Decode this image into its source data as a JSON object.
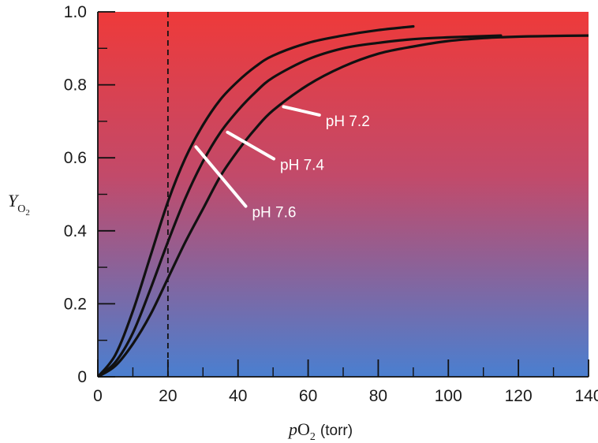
{
  "chart_data": {
    "type": "line",
    "xlabel_italic": "p",
    "xlabel_main": "O",
    "xlabel_sub": "2",
    "xlabel_unit": "(torr)",
    "ylabel_main": "Y",
    "ylabel_sub": "O",
    "ylabel_subsub": "2",
    "xlim": [
      0,
      140
    ],
    "ylim": [
      0,
      1.0
    ],
    "x_ticks": [
      0,
      20,
      40,
      60,
      80,
      100,
      120,
      140
    ],
    "x_tick_labels": [
      "0",
      "20",
      "40",
      "60",
      "80",
      "100",
      "120",
      "140"
    ],
    "y_ticks": [
      0,
      0.2,
      0.4,
      0.6,
      0.8,
      1.0
    ],
    "y_tick_labels": [
      "0",
      "0.2",
      "0.4",
      "0.6",
      "0.8",
      "1.0"
    ],
    "reference_line_x": 20,
    "background_gradient": {
      "top": "#ee3a3a",
      "bottom": "#4a7fd0"
    },
    "line_color": "#111111",
    "series": [
      {
        "name": "pH 7.6",
        "x": [
          0,
          5,
          10,
          15,
          20,
          25,
          30,
          35,
          40,
          45,
          50,
          60,
          70,
          80,
          90
        ],
        "y": [
          0,
          0.06,
          0.18,
          0.33,
          0.48,
          0.6,
          0.69,
          0.76,
          0.81,
          0.85,
          0.88,
          0.915,
          0.935,
          0.95,
          0.96
        ]
      },
      {
        "name": "pH 7.4",
        "x": [
          0,
          5,
          10,
          15,
          20,
          25,
          30,
          35,
          40,
          45,
          50,
          60,
          70,
          80,
          90,
          100,
          115
        ],
        "y": [
          0,
          0.04,
          0.12,
          0.24,
          0.37,
          0.49,
          0.59,
          0.67,
          0.73,
          0.78,
          0.82,
          0.87,
          0.9,
          0.915,
          0.925,
          0.93,
          0.935
        ]
      },
      {
        "name": "pH 7.2",
        "x": [
          0,
          5,
          10,
          15,
          20,
          25,
          30,
          35,
          40,
          45,
          50,
          60,
          70,
          80,
          90,
          100,
          110,
          120,
          130,
          140
        ],
        "y": [
          0,
          0.03,
          0.09,
          0.17,
          0.27,
          0.37,
          0.46,
          0.55,
          0.62,
          0.68,
          0.73,
          0.8,
          0.85,
          0.885,
          0.905,
          0.92,
          0.928,
          0.932,
          0.934,
          0.935
        ]
      }
    ],
    "annotations": [
      {
        "text": "pH 7.2",
        "series": "pH 7.2",
        "point_x": 53,
        "point_y": 0.74,
        "label_x": 65,
        "label_y": 0.7
      },
      {
        "text": "pH 7.4",
        "series": "pH 7.4",
        "point_x": 37,
        "point_y": 0.67,
        "label_x": 52,
        "label_y": 0.58
      },
      {
        "text": "pH 7.6",
        "series": "pH 7.6",
        "point_x": 28,
        "point_y": 0.63,
        "label_x": 44,
        "label_y": 0.45
      }
    ]
  }
}
